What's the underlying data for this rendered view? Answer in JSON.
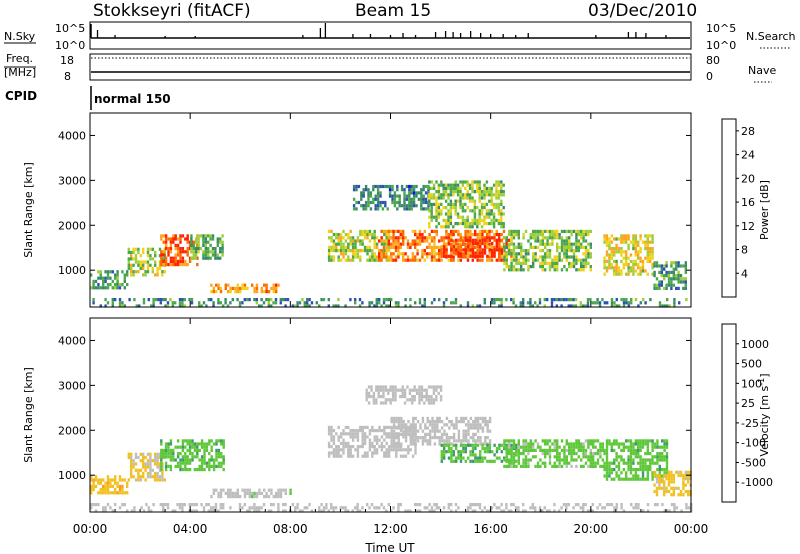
{
  "header": {
    "station": "Stokkseyri (fitACF)",
    "beam": "Beam 15",
    "date": "03/Dec/2010"
  },
  "panels": {
    "nsky_label": "N.Sky",
    "nsearch_label": "N.Search",
    "nsky_top": "10^5",
    "nsky_bottom": "10^0",
    "nsearch_top": "10^5",
    "nsearch_bottom": "10^0",
    "freq_label_line1": "Freq.",
    "freq_label_line2": "[MHz]",
    "freq_top": "18",
    "freq_bottom": "8",
    "nave_label": "Nave",
    "nave_top": "80",
    "nave_bottom": "0",
    "cpid_label": "CPID",
    "cpid_value": "normal 150"
  },
  "chart_data": [
    {
      "type": "heatmap",
      "title": "",
      "xlabel": "Time UT",
      "ylabel": "Slant Range [km]",
      "xlim": [
        0,
        24
      ],
      "ylim": [
        180,
        4500
      ],
      "x_ticks": [
        "00:00",
        "04:00",
        "08:00",
        "12:00",
        "16:00",
        "20:00",
        "00:00"
      ],
      "y_ticks": [
        1000,
        2000,
        3000,
        4000
      ],
      "colorbar": {
        "label": "Power [dB]",
        "ticks": [
          4,
          8,
          12,
          16,
          20,
          24,
          28
        ],
        "range": [
          0,
          30
        ],
        "colors": [
          "#0a0aff",
          "#2c52b0",
          "#3a8a6a",
          "#4aa84a",
          "#9ccf3a",
          "#f0d21a",
          "#ffa51f",
          "#ff6a00",
          "#ff2200"
        ]
      },
      "regions": [
        {
          "t0": 0.0,
          "t1": 1.5,
          "r0": 600,
          "r1": 1000,
          "value": 10
        },
        {
          "t0": 1.5,
          "t1": 3.0,
          "r0": 900,
          "r1": 1500,
          "value": 16
        },
        {
          "t0": 2.8,
          "t1": 4.3,
          "r0": 1100,
          "r1": 1800,
          "value": 26
        },
        {
          "t0": 4.0,
          "t1": 5.3,
          "r0": 1300,
          "r1": 1800,
          "value": 12
        },
        {
          "t0": 4.8,
          "t1": 7.5,
          "r0": 550,
          "r1": 700,
          "value": 22
        },
        {
          "t0": 9.5,
          "t1": 12.0,
          "r0": 1200,
          "r1": 1900,
          "value": 16
        },
        {
          "t0": 11.5,
          "t1": 16.5,
          "r0": 1200,
          "r1": 1900,
          "value": 24
        },
        {
          "t0": 14.0,
          "t1": 16.8,
          "r0": 1300,
          "r1": 1700,
          "value": 28
        },
        {
          "t0": 10.5,
          "t1": 13.5,
          "r0": 2400,
          "r1": 2900,
          "value": 8
        },
        {
          "t0": 13.5,
          "t1": 16.5,
          "r0": 2000,
          "r1": 3000,
          "value": 14
        },
        {
          "t0": 16.5,
          "t1": 20.0,
          "r0": 1000,
          "r1": 1900,
          "value": 14
        },
        {
          "t0": 20.5,
          "t1": 22.5,
          "r0": 900,
          "r1": 1800,
          "value": 18
        },
        {
          "t0": 22.5,
          "t1": 23.8,
          "r0": 600,
          "r1": 1200,
          "value": 10
        },
        {
          "t0": 0.0,
          "t1": 24.0,
          "r0": 180,
          "r1": 380,
          "value": 9
        }
      ]
    },
    {
      "type": "heatmap",
      "title": "",
      "xlabel": "Time UT",
      "ylabel": "Slant Range [km]",
      "xlim": [
        0,
        24
      ],
      "ylim": [
        180,
        4500
      ],
      "x_ticks": [
        "00:00",
        "04:00",
        "08:00",
        "12:00",
        "16:00",
        "20:00",
        "00:00"
      ],
      "y_ticks": [
        1000,
        2000,
        3000,
        4000
      ],
      "colorbar": {
        "label": "Velocity [m s^-1]",
        "ticks": [
          "1000",
          "500",
          "100",
          "25",
          "-25",
          "-100",
          "-500",
          "-1000"
        ],
        "range": [
          -1200,
          1200
        ],
        "colors": [
          "#1c3cc8",
          "#2b6ab8",
          "#3f9a6a",
          "#5fc83a",
          "#bebebe",
          "#f2c020",
          "#ff9a20",
          "#ff5a00",
          "#ff1a00"
        ]
      },
      "regions": [
        {
          "t0": 0.0,
          "t1": 1.5,
          "r0": 600,
          "r1": 1000,
          "value": 300
        },
        {
          "t0": 1.5,
          "t1": 3.0,
          "r0": 900,
          "r1": 1500,
          "value": 150
        },
        {
          "t0": 2.8,
          "t1": 5.3,
          "r0": 1100,
          "r1": 1800,
          "value": -300
        },
        {
          "t0": 4.8,
          "t1": 8.0,
          "r0": 550,
          "r1": 700,
          "value": -80
        },
        {
          "t0": 9.5,
          "t1": 13.0,
          "r0": 1400,
          "r1": 2100,
          "value": 0
        },
        {
          "t0": 12.0,
          "t1": 16.0,
          "r0": 1700,
          "r1": 2300,
          "value": 0
        },
        {
          "t0": 11.0,
          "t1": 14.0,
          "r0": 2600,
          "r1": 3000,
          "value": 0
        },
        {
          "t0": 14.0,
          "t1": 17.0,
          "r0": 1300,
          "r1": 1700,
          "value": -350
        },
        {
          "t0": 16.5,
          "t1": 20.5,
          "r0": 1200,
          "r1": 1800,
          "value": -200
        },
        {
          "t0": 20.5,
          "t1": 23.0,
          "r0": 900,
          "r1": 1800,
          "value": -300
        },
        {
          "t0": 22.5,
          "t1": 24.0,
          "r0": 600,
          "r1": 1100,
          "value": 200
        },
        {
          "t0": 0.0,
          "t1": 24.0,
          "r0": 180,
          "r1": 380,
          "value": 60
        }
      ]
    }
  ]
}
